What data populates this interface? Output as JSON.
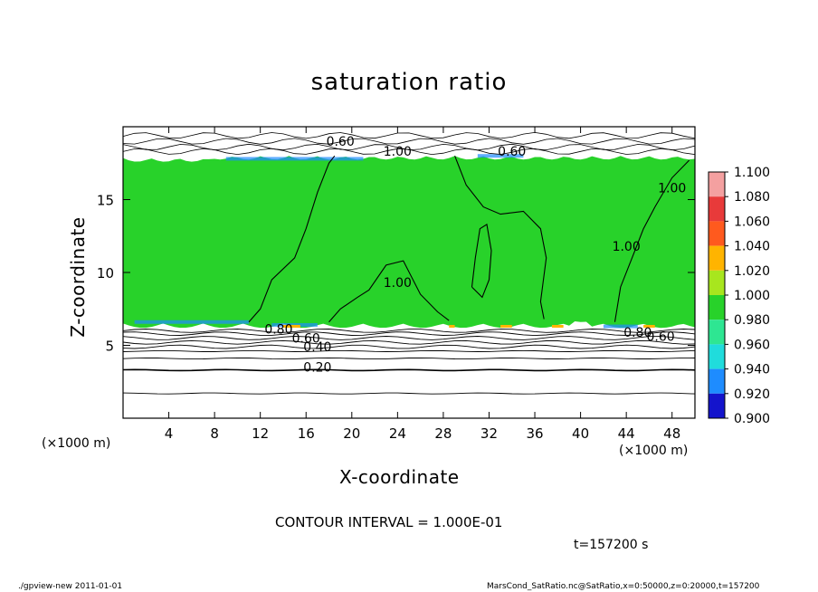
{
  "chart_data": {
    "type": "heatmap",
    "title": "saturation ratio",
    "xlabel": "X-coordinate",
    "ylabel": "Z-coordinate",
    "x_unit": "(×1000 m)",
    "y_unit": "(×1000 m)",
    "xlim": [
      0,
      50
    ],
    "ylim": [
      0,
      20
    ],
    "x_ticks": [
      "4",
      "8",
      "12",
      "16",
      "20",
      "24",
      "28",
      "32",
      "36",
      "40",
      "44",
      "48"
    ],
    "y_ticks": [
      "5",
      "10",
      "15"
    ],
    "colorbar": {
      "levels": [
        "1.100",
        "1.080",
        "1.060",
        "1.040",
        "1.020",
        "1.000",
        "0.980",
        "0.960",
        "0.940",
        "0.920",
        "0.900"
      ],
      "colors": [
        "#f4a0a0",
        "#e83a3a",
        "#ff5a1e",
        "#ffb400",
        "#a8e61e",
        "#28d22a",
        "#2ee692",
        "#20dcdc",
        "#1e8cff",
        "#1414cc",
        "#7a14c8"
      ]
    },
    "contour_labels": [
      {
        "text": "0.60",
        "x": 19,
        "z": 18.7
      },
      {
        "text": "1.00",
        "x": 24,
        "z": 18.0
      },
      {
        "text": "0.60",
        "x": 34,
        "z": 18.0
      },
      {
        "text": "1.00",
        "x": 48,
        "z": 15.5
      },
      {
        "text": "1.00",
        "x": 44,
        "z": 11.5
      },
      {
        "text": "1.00",
        "x": 24,
        "z": 9.0
      },
      {
        "text": "0.80",
        "x": 13.6,
        "z": 5.8
      },
      {
        "text": "0.60",
        "x": 16,
        "z": 5.2
      },
      {
        "text": "0.40",
        "x": 17,
        "z": 4.6
      },
      {
        "text": "0.20",
        "x": 17,
        "z": 3.2
      },
      {
        "text": "0.80",
        "x": 45,
        "z": 5.6
      },
      {
        "text": "0.60",
        "x": 47,
        "z": 5.3
      }
    ],
    "contour_interval": "CONTOUR INTERVAL = 1.000E-01",
    "time": "t=157200 s"
  },
  "footer": {
    "left": "./gpview-new  2011-01-01",
    "right": "MarsCond_SatRatio.nc@SatRatio,x=0:50000,z=0:20000,t=157200"
  },
  "colors": {
    "field_green": "#28d22a",
    "contour_line": "#000000"
  }
}
